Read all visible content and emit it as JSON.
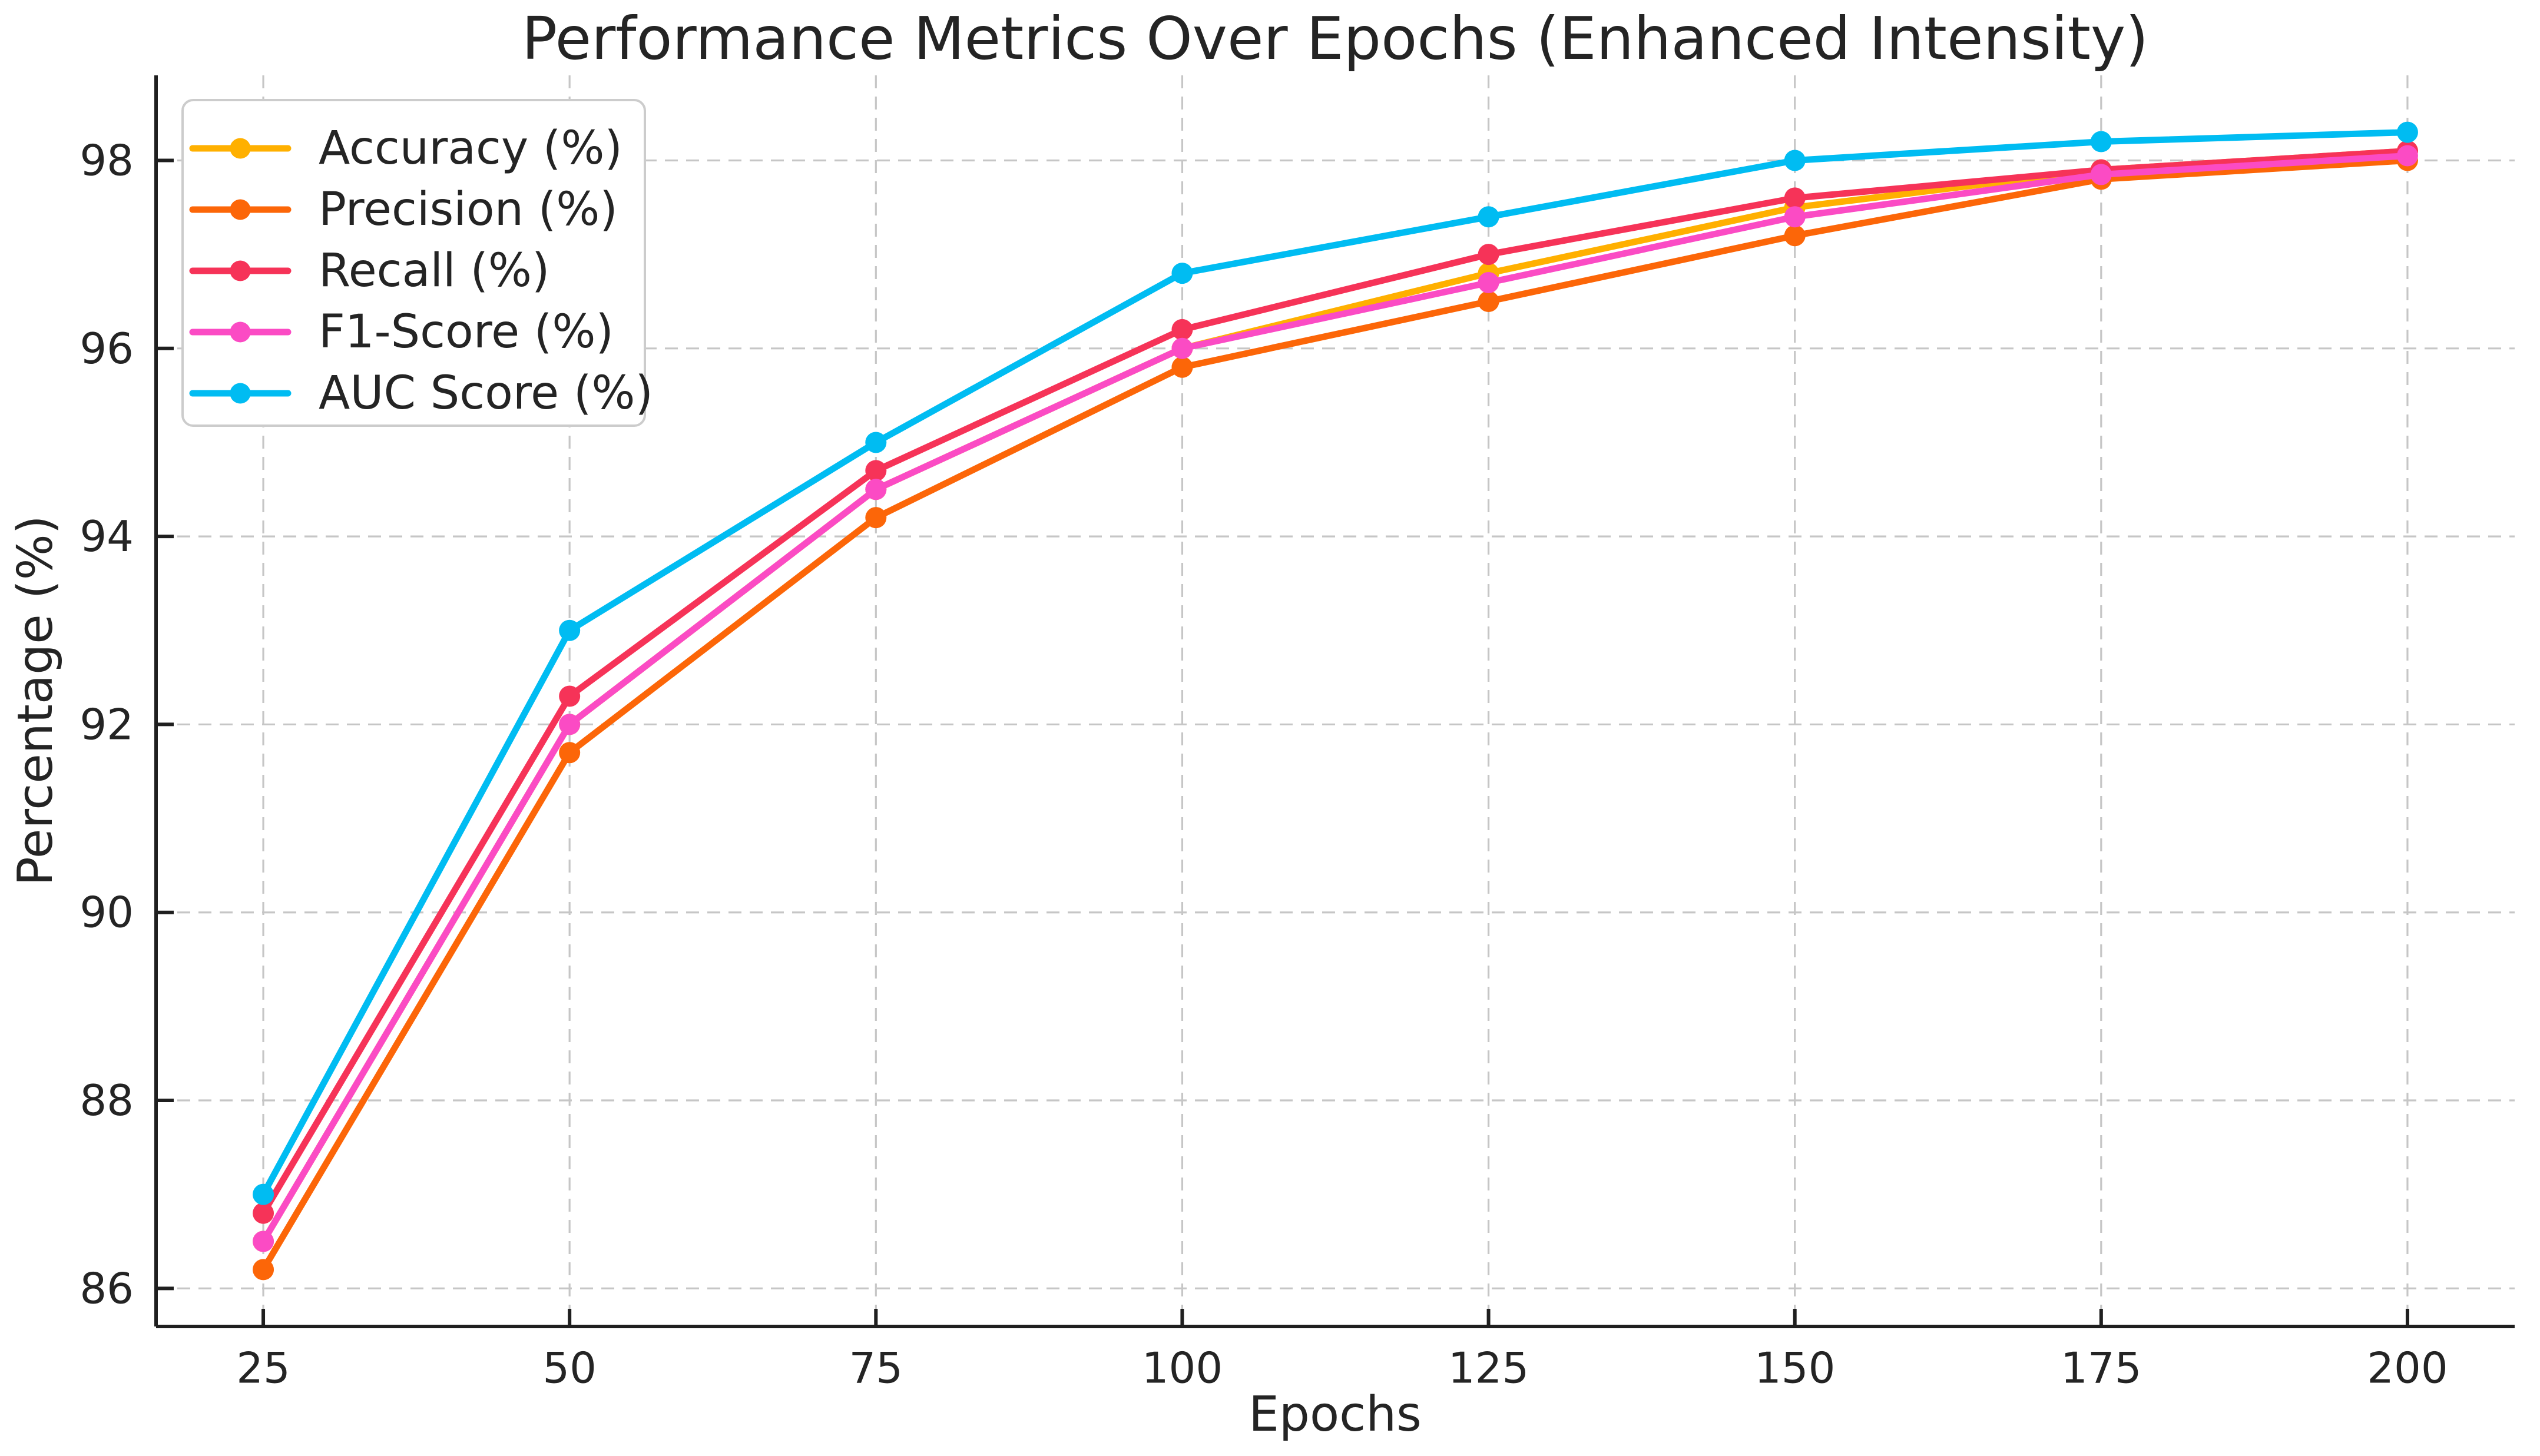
{
  "chart_data": {
    "type": "line",
    "title": "Performance Metrics Over Epochs (Enhanced Intensity)",
    "xlabel": "Epochs",
    "ylabel": "Percentage (%)",
    "x": [
      25,
      50,
      75,
      100,
      125,
      150,
      175,
      200
    ],
    "x_ticks": [
      25,
      50,
      75,
      100,
      125,
      150,
      175,
      200
    ],
    "y_ticks": [
      86,
      88,
      90,
      92,
      94,
      96,
      98
    ],
    "xlim": [
      16.25,
      208.75
    ],
    "ylim": [
      85.595,
      98.905
    ],
    "grid": true,
    "grid_style": "dashed",
    "legend_position": "upper left",
    "series": [
      {
        "name": "Accuracy (%)",
        "color": "#FFB000",
        "values": [
          86.5,
          92.0,
          94.5,
          96.0,
          96.8,
          97.5,
          97.9,
          98.1
        ]
      },
      {
        "name": "Precision (%)",
        "color": "#FC6608",
        "values": [
          86.2,
          91.7,
          94.2,
          95.8,
          96.5,
          97.2,
          97.8,
          98.0
        ]
      },
      {
        "name": "Recall (%)",
        "color": "#F63358",
        "values": [
          86.8,
          92.3,
          94.7,
          96.2,
          97.0,
          97.6,
          97.9,
          98.1
        ]
      },
      {
        "name": "F1-Score (%)",
        "color": "#FB4BC4",
        "values": [
          86.5,
          92.0,
          94.5,
          96.0,
          96.7,
          97.4,
          97.85,
          98.05
        ]
      },
      {
        "name": "AUC Score (%)",
        "color": "#00BCF2",
        "values": [
          87.0,
          93.0,
          95.0,
          96.8,
          97.4,
          98.0,
          98.2,
          98.3
        ]
      }
    ]
  }
}
